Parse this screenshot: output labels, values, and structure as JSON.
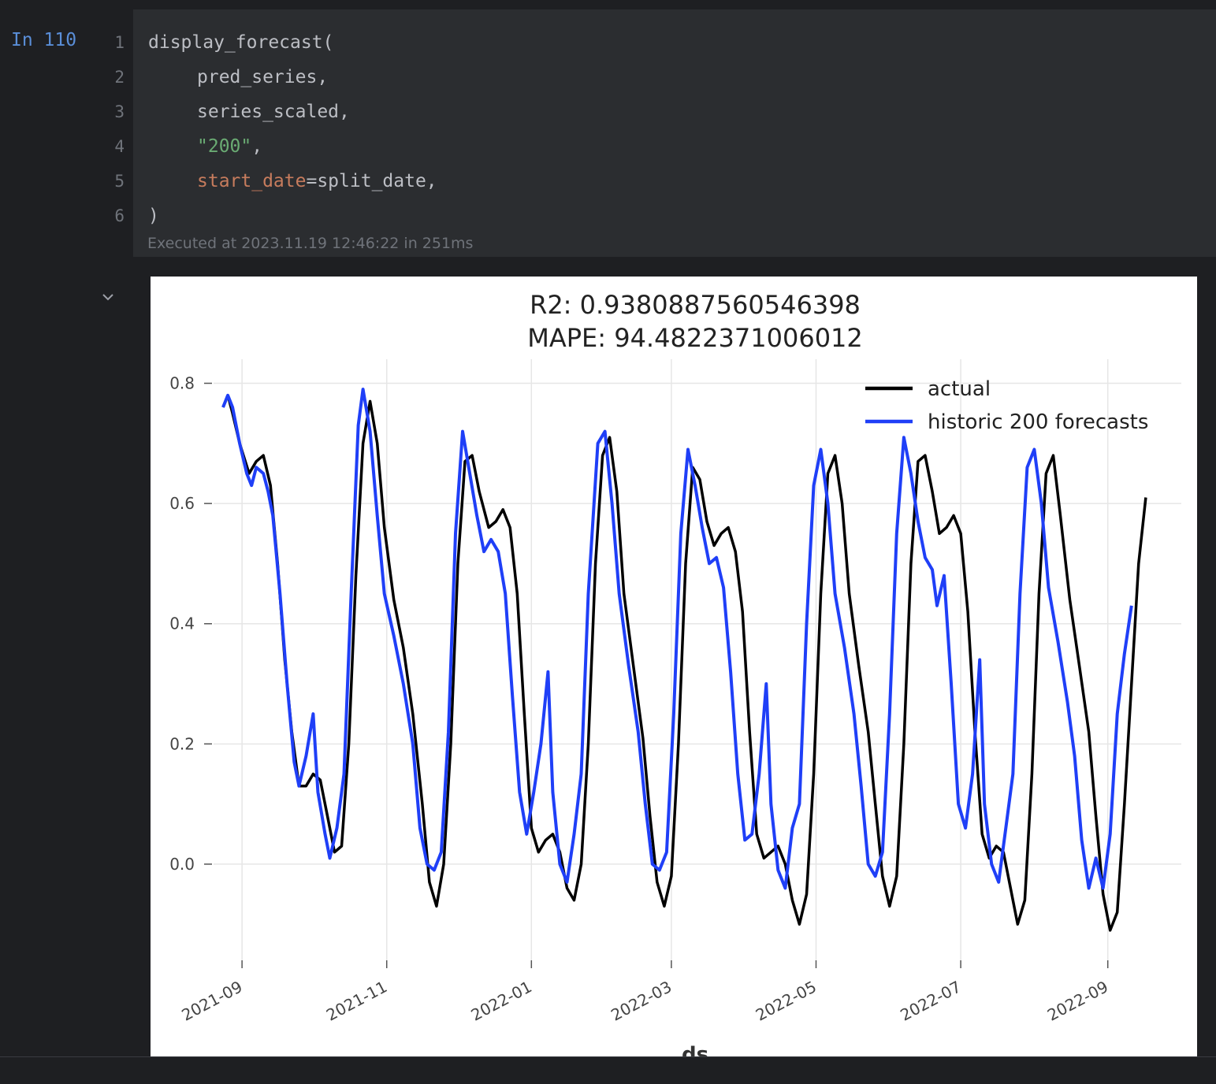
{
  "cell": {
    "prompt": "In 110",
    "line_numbers": [
      "1",
      "2",
      "3",
      "4",
      "5",
      "6"
    ],
    "code": {
      "line1": "display_forecast(",
      "line2": "pred_series,",
      "line3": "series_scaled,",
      "line4_str": "\"200\"",
      "line4_rest": ",",
      "line5_kw": "start_date",
      "line5_rest": "=split_date,",
      "line6": ")"
    },
    "execution_info": "Executed at 2023.11.19 12:46:22 in 251ms",
    "collapse_icon": "chevron-down-icon"
  },
  "chart_data": {
    "type": "line",
    "title": "R2: 0.9380887560546398",
    "subtitle": "MAPE: 94.4822371006012",
    "xlabel": "ds",
    "ylabel": "",
    "x_range": [
      "2021-08-20",
      "2022-10-02"
    ],
    "ylim": [
      -0.16,
      0.84
    ],
    "x_ticks": [
      "2021-09",
      "2021-11",
      "2022-01",
      "2022-03",
      "2022-05",
      "2022-07",
      "2022-09"
    ],
    "y_ticks": [
      0.0,
      0.2,
      0.4,
      0.6,
      0.8
    ],
    "y_tick_labels": [
      "0.0",
      "0.2",
      "0.4",
      "0.6",
      "0.8"
    ],
    "grid": true,
    "legend_position": "top-right",
    "series": [
      {
        "name": "actual",
        "color": "#000000",
        "points": [
          [
            "2021-08-24",
            0.76
          ],
          [
            "2021-08-26",
            0.78
          ],
          [
            "2021-08-28",
            0.75
          ],
          [
            "2021-08-31",
            0.7
          ],
          [
            "2021-09-04",
            0.65
          ],
          [
            "2021-09-07",
            0.67
          ],
          [
            "2021-09-10",
            0.68
          ],
          [
            "2021-09-13",
            0.63
          ],
          [
            "2021-09-16",
            0.5
          ],
          [
            "2021-09-19",
            0.34
          ],
          [
            "2021-09-22",
            0.22
          ],
          [
            "2021-09-25",
            0.13
          ],
          [
            "2021-09-28",
            0.13
          ],
          [
            "2021-10-01",
            0.15
          ],
          [
            "2021-10-04",
            0.14
          ],
          [
            "2021-10-07",
            0.08
          ],
          [
            "2021-10-10",
            0.02
          ],
          [
            "2021-10-13",
            0.03
          ],
          [
            "2021-10-16",
            0.2
          ],
          [
            "2021-10-19",
            0.48
          ],
          [
            "2021-10-22",
            0.7
          ],
          [
            "2021-10-25",
            0.77
          ],
          [
            "2021-10-28",
            0.7
          ],
          [
            "2021-10-31",
            0.56
          ],
          [
            "2021-11-04",
            0.44
          ],
          [
            "2021-11-08",
            0.36
          ],
          [
            "2021-11-12",
            0.25
          ],
          [
            "2021-11-16",
            0.1
          ],
          [
            "2021-11-19",
            -0.03
          ],
          [
            "2021-11-22",
            -0.07
          ],
          [
            "2021-11-25",
            0.0
          ],
          [
            "2021-11-28",
            0.2
          ],
          [
            "2021-12-01",
            0.5
          ],
          [
            "2021-12-04",
            0.67
          ],
          [
            "2021-12-07",
            0.68
          ],
          [
            "2021-12-10",
            0.62
          ],
          [
            "2021-12-14",
            0.56
          ],
          [
            "2021-12-17",
            0.57
          ],
          [
            "2021-12-20",
            0.59
          ],
          [
            "2021-12-23",
            0.56
          ],
          [
            "2021-12-26",
            0.45
          ],
          [
            "2021-12-29",
            0.25
          ],
          [
            "2022-01-01",
            0.06
          ],
          [
            "2022-01-04",
            0.02
          ],
          [
            "2022-01-07",
            0.04
          ],
          [
            "2022-01-10",
            0.05
          ],
          [
            "2022-01-13",
            0.02
          ],
          [
            "2022-01-16",
            -0.04
          ],
          [
            "2022-01-19",
            -0.06
          ],
          [
            "2022-01-22",
            0.0
          ],
          [
            "2022-01-25",
            0.2
          ],
          [
            "2022-01-28",
            0.5
          ],
          [
            "2022-01-31",
            0.68
          ],
          [
            "2022-02-03",
            0.71
          ],
          [
            "2022-02-06",
            0.62
          ],
          [
            "2022-02-09",
            0.45
          ],
          [
            "2022-02-13",
            0.33
          ],
          [
            "2022-02-17",
            0.21
          ],
          [
            "2022-02-20",
            0.08
          ],
          [
            "2022-02-23",
            -0.03
          ],
          [
            "2022-02-26",
            -0.07
          ],
          [
            "2022-03-01",
            -0.02
          ],
          [
            "2022-03-04",
            0.2
          ],
          [
            "2022-03-07",
            0.5
          ],
          [
            "2022-03-10",
            0.66
          ],
          [
            "2022-03-13",
            0.64
          ],
          [
            "2022-03-16",
            0.57
          ],
          [
            "2022-03-19",
            0.53
          ],
          [
            "2022-03-22",
            0.55
          ],
          [
            "2022-03-25",
            0.56
          ],
          [
            "2022-03-28",
            0.52
          ],
          [
            "2022-03-31",
            0.42
          ],
          [
            "2022-04-03",
            0.22
          ],
          [
            "2022-04-06",
            0.05
          ],
          [
            "2022-04-09",
            0.01
          ],
          [
            "2022-04-12",
            0.02
          ],
          [
            "2022-04-15",
            0.03
          ],
          [
            "2022-04-18",
            0.0
          ],
          [
            "2022-04-21",
            -0.06
          ],
          [
            "2022-04-24",
            -0.1
          ],
          [
            "2022-04-27",
            -0.05
          ],
          [
            "2022-04-30",
            0.15
          ],
          [
            "2022-05-03",
            0.45
          ],
          [
            "2022-05-06",
            0.65
          ],
          [
            "2022-05-09",
            0.68
          ],
          [
            "2022-05-12",
            0.6
          ],
          [
            "2022-05-15",
            0.45
          ],
          [
            "2022-05-19",
            0.33
          ],
          [
            "2022-05-23",
            0.22
          ],
          [
            "2022-05-26",
            0.1
          ],
          [
            "2022-05-29",
            -0.02
          ],
          [
            "2022-06-01",
            -0.07
          ],
          [
            "2022-06-04",
            -0.02
          ],
          [
            "2022-06-07",
            0.2
          ],
          [
            "2022-06-10",
            0.5
          ],
          [
            "2022-06-13",
            0.67
          ],
          [
            "2022-06-16",
            0.68
          ],
          [
            "2022-06-19",
            0.62
          ],
          [
            "2022-06-22",
            0.55
          ],
          [
            "2022-06-25",
            0.56
          ],
          [
            "2022-06-28",
            0.58
          ],
          [
            "2022-07-01",
            0.55
          ],
          [
            "2022-07-04",
            0.42
          ],
          [
            "2022-07-07",
            0.22
          ],
          [
            "2022-07-10",
            0.05
          ],
          [
            "2022-07-13",
            0.01
          ],
          [
            "2022-07-16",
            0.03
          ],
          [
            "2022-07-19",
            0.02
          ],
          [
            "2022-07-22",
            -0.04
          ],
          [
            "2022-07-25",
            -0.1
          ],
          [
            "2022-07-28",
            -0.06
          ],
          [
            "2022-07-31",
            0.15
          ],
          [
            "2022-08-03",
            0.45
          ],
          [
            "2022-08-06",
            0.65
          ],
          [
            "2022-08-09",
            0.68
          ],
          [
            "2022-08-12",
            0.58
          ],
          [
            "2022-08-16",
            0.44
          ],
          [
            "2022-08-20",
            0.33
          ],
          [
            "2022-08-24",
            0.22
          ],
          [
            "2022-08-27",
            0.08
          ],
          [
            "2022-08-30",
            -0.05
          ],
          [
            "2022-09-02",
            -0.11
          ],
          [
            "2022-09-05",
            -0.08
          ],
          [
            "2022-09-08",
            0.1
          ],
          [
            "2022-09-11",
            0.3
          ],
          [
            "2022-09-14",
            0.5
          ],
          [
            "2022-09-17",
            0.61
          ]
        ]
      },
      {
        "name": "historic 200 forecasts",
        "color": "#1f3ff7",
        "points": [
          [
            "2021-08-24",
            0.76
          ],
          [
            "2021-08-26",
            0.78
          ],
          [
            "2021-08-28",
            0.76
          ],
          [
            "2021-08-31",
            0.7
          ],
          [
            "2021-09-03",
            0.65
          ],
          [
            "2021-09-05",
            0.63
          ],
          [
            "2021-09-07",
            0.66
          ],
          [
            "2021-09-10",
            0.65
          ],
          [
            "2021-09-12",
            0.62
          ],
          [
            "2021-09-14",
            0.58
          ],
          [
            "2021-09-17",
            0.45
          ],
          [
            "2021-09-20",
            0.3
          ],
          [
            "2021-09-23",
            0.17
          ],
          [
            "2021-09-25",
            0.13
          ],
          [
            "2021-09-28",
            0.18
          ],
          [
            "2021-10-01",
            0.25
          ],
          [
            "2021-10-03",
            0.12
          ],
          [
            "2021-10-06",
            0.05
          ],
          [
            "2021-10-08",
            0.01
          ],
          [
            "2021-10-11",
            0.06
          ],
          [
            "2021-10-14",
            0.15
          ],
          [
            "2021-10-17",
            0.45
          ],
          [
            "2021-10-20",
            0.73
          ],
          [
            "2021-10-22",
            0.79
          ],
          [
            "2021-10-25",
            0.72
          ],
          [
            "2021-10-28",
            0.58
          ],
          [
            "2021-10-31",
            0.45
          ],
          [
            "2021-11-04",
            0.38
          ],
          [
            "2021-11-08",
            0.3
          ],
          [
            "2021-11-12",
            0.2
          ],
          [
            "2021-11-15",
            0.06
          ],
          [
            "2021-11-18",
            0.0
          ],
          [
            "2021-11-21",
            -0.01
          ],
          [
            "2021-11-24",
            0.02
          ],
          [
            "2021-11-27",
            0.22
          ],
          [
            "2021-11-30",
            0.55
          ],
          [
            "2021-12-03",
            0.72
          ],
          [
            "2021-12-06",
            0.65
          ],
          [
            "2021-12-09",
            0.58
          ],
          [
            "2021-12-12",
            0.52
          ],
          [
            "2021-12-15",
            0.54
          ],
          [
            "2021-12-18",
            0.52
          ],
          [
            "2021-12-21",
            0.45
          ],
          [
            "2021-12-24",
            0.28
          ],
          [
            "2021-12-27",
            0.12
          ],
          [
            "2021-12-30",
            0.05
          ],
          [
            "2022-01-02",
            0.12
          ],
          [
            "2022-01-05",
            0.2
          ],
          [
            "2022-01-08",
            0.32
          ],
          [
            "2022-01-10",
            0.12
          ],
          [
            "2022-01-13",
            0.0
          ],
          [
            "2022-01-16",
            -0.03
          ],
          [
            "2022-01-19",
            0.05
          ],
          [
            "2022-01-22",
            0.15
          ],
          [
            "2022-01-25",
            0.45
          ],
          [
            "2022-01-29",
            0.7
          ],
          [
            "2022-02-01",
            0.72
          ],
          [
            "2022-02-04",
            0.6
          ],
          [
            "2022-02-07",
            0.45
          ],
          [
            "2022-02-11",
            0.33
          ],
          [
            "2022-02-15",
            0.22
          ],
          [
            "2022-02-18",
            0.1
          ],
          [
            "2022-02-21",
            0.0
          ],
          [
            "2022-02-24",
            -0.01
          ],
          [
            "2022-02-27",
            0.02
          ],
          [
            "2022-03-02",
            0.25
          ],
          [
            "2022-03-05",
            0.55
          ],
          [
            "2022-03-08",
            0.69
          ],
          [
            "2022-03-11",
            0.63
          ],
          [
            "2022-03-14",
            0.56
          ],
          [
            "2022-03-17",
            0.5
          ],
          [
            "2022-03-20",
            0.51
          ],
          [
            "2022-03-23",
            0.46
          ],
          [
            "2022-03-26",
            0.32
          ],
          [
            "2022-03-29",
            0.15
          ],
          [
            "2022-04-01",
            0.04
          ],
          [
            "2022-04-04",
            0.05
          ],
          [
            "2022-04-07",
            0.15
          ],
          [
            "2022-04-10",
            0.3
          ],
          [
            "2022-04-12",
            0.1
          ],
          [
            "2022-04-15",
            -0.01
          ],
          [
            "2022-04-18",
            -0.04
          ],
          [
            "2022-04-21",
            0.06
          ],
          [
            "2022-04-24",
            0.1
          ],
          [
            "2022-04-27",
            0.4
          ],
          [
            "2022-04-30",
            0.63
          ],
          [
            "2022-05-03",
            0.69
          ],
          [
            "2022-05-06",
            0.6
          ],
          [
            "2022-05-09",
            0.45
          ],
          [
            "2022-05-13",
            0.36
          ],
          [
            "2022-05-17",
            0.25
          ],
          [
            "2022-05-20",
            0.13
          ],
          [
            "2022-05-23",
            0.0
          ],
          [
            "2022-05-26",
            -0.02
          ],
          [
            "2022-05-29",
            0.02
          ],
          [
            "2022-06-01",
            0.25
          ],
          [
            "2022-06-04",
            0.55
          ],
          [
            "2022-06-07",
            0.71
          ],
          [
            "2022-06-10",
            0.65
          ],
          [
            "2022-06-13",
            0.57
          ],
          [
            "2022-06-16",
            0.51
          ],
          [
            "2022-06-19",
            0.49
          ],
          [
            "2022-06-21",
            0.43
          ],
          [
            "2022-06-24",
            0.48
          ],
          [
            "2022-06-27",
            0.3
          ],
          [
            "2022-06-30",
            0.1
          ],
          [
            "2022-07-03",
            0.06
          ],
          [
            "2022-07-06",
            0.15
          ],
          [
            "2022-07-09",
            0.34
          ],
          [
            "2022-07-11",
            0.1
          ],
          [
            "2022-07-14",
            0.0
          ],
          [
            "2022-07-17",
            -0.03
          ],
          [
            "2022-07-20",
            0.06
          ],
          [
            "2022-07-23",
            0.15
          ],
          [
            "2022-07-26",
            0.45
          ],
          [
            "2022-07-29",
            0.66
          ],
          [
            "2022-08-01",
            0.69
          ],
          [
            "2022-08-04",
            0.6
          ],
          [
            "2022-08-07",
            0.46
          ],
          [
            "2022-08-11",
            0.37
          ],
          [
            "2022-08-15",
            0.27
          ],
          [
            "2022-08-18",
            0.18
          ],
          [
            "2022-08-21",
            0.04
          ],
          [
            "2022-08-24",
            -0.04
          ],
          [
            "2022-08-27",
            0.01
          ],
          [
            "2022-08-30",
            -0.04
          ],
          [
            "2022-09-02",
            0.05
          ],
          [
            "2022-09-05",
            0.25
          ],
          [
            "2022-09-08",
            0.35
          ],
          [
            "2022-09-11",
            0.43
          ]
        ]
      }
    ]
  }
}
